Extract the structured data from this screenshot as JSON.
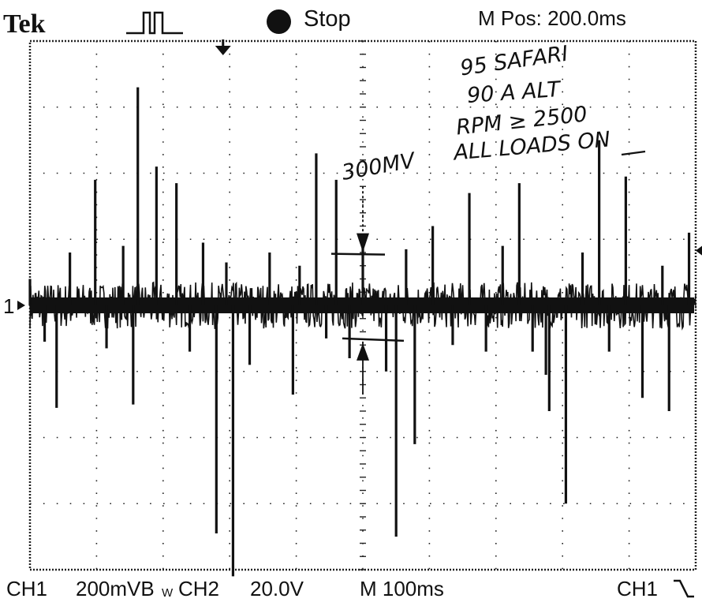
{
  "header": {
    "brand": "Tek",
    "trigger_icon": "pulse-waveform-icon",
    "run_status": "Stop",
    "m_pos": "M Pos: 200.0ms"
  },
  "footer": {
    "ch1_label": "CH1",
    "ch1_scale": "200mVB",
    "bw_mark": "W",
    "ch2_label": "CH2",
    "ch2_scale": "20.0V",
    "timebase": "M 100ms",
    "trigger_source": "CH1",
    "trigger_slope_icon": "falling-edge-icon"
  },
  "annotations": {
    "lines": [
      "95 SAFARI",
      "90 A ALT",
      "RPM ≥ 2500",
      "ALL LOADS ON"
    ],
    "measurement": "300MV"
  },
  "colors": {
    "trace": "#111111",
    "background": "#ffffff",
    "grid": "#222222"
  },
  "chart_data": {
    "type": "line",
    "title": "",
    "xlabel": "",
    "ylabel": "",
    "channel_marker": "1",
    "x_divisions": 10,
    "y_divisions": 8,
    "x_unit_per_div": "100ms",
    "y_unit_per_div": "200mV",
    "xlim": [
      0,
      10
    ],
    "ylim": [
      -4,
      4
    ],
    "noise_band_div": 0.35,
    "spikes": [
      {
        "x": 0.0,
        "y": 0.4
      },
      {
        "x": 0.22,
        "y": -0.55
      },
      {
        "x": 0.4,
        "y": -1.55
      },
      {
        "x": 0.6,
        "y": 0.8
      },
      {
        "x": 0.98,
        "y": 1.9
      },
      {
        "x": 1.15,
        "y": -0.65
      },
      {
        "x": 1.4,
        "y": 0.9
      },
      {
        "x": 1.55,
        "y": -1.5
      },
      {
        "x": 1.62,
        "y": 3.3
      },
      {
        "x": 1.9,
        "y": 2.1
      },
      {
        "x": 2.2,
        "y": 1.85
      },
      {
        "x": 2.4,
        "y": -0.7
      },
      {
        "x": 2.6,
        "y": 0.95
      },
      {
        "x": 2.8,
        "y": -3.45
      },
      {
        "x": 2.95,
        "y": 0.65
      },
      {
        "x": 3.05,
        "y": -4.1
      },
      {
        "x": 3.3,
        "y": -0.9
      },
      {
        "x": 3.6,
        "y": 0.8
      },
      {
        "x": 3.95,
        "y": -1.35
      },
      {
        "x": 4.05,
        "y": 0.6
      },
      {
        "x": 4.3,
        "y": 2.3
      },
      {
        "x": 4.45,
        "y": -0.5
      },
      {
        "x": 4.6,
        "y": 1.9
      },
      {
        "x": 4.8,
        "y": -0.8
      },
      {
        "x": 5.0,
        "y": 0.95
      },
      {
        "x": 5.35,
        "y": -1.0
      },
      {
        "x": 5.5,
        "y": -3.5
      },
      {
        "x": 5.65,
        "y": 0.85
      },
      {
        "x": 5.78,
        "y": -2.1
      },
      {
        "x": 6.05,
        "y": 1.2
      },
      {
        "x": 6.35,
        "y": -0.6
      },
      {
        "x": 6.6,
        "y": 1.7
      },
      {
        "x": 6.85,
        "y": -0.7
      },
      {
        "x": 7.1,
        "y": 0.9
      },
      {
        "x": 7.35,
        "y": 1.85
      },
      {
        "x": 7.55,
        "y": -0.7
      },
      {
        "x": 7.75,
        "y": -1.05
      },
      {
        "x": 7.8,
        "y": -1.6
      },
      {
        "x": 8.05,
        "y": -3.0
      },
      {
        "x": 8.3,
        "y": 0.8
      },
      {
        "x": 8.55,
        "y": 2.5
      },
      {
        "x": 8.7,
        "y": -0.7
      },
      {
        "x": 8.95,
        "y": 1.95
      },
      {
        "x": 9.2,
        "y": -1.4
      },
      {
        "x": 9.5,
        "y": 0.6
      },
      {
        "x": 9.6,
        "y": -1.6
      },
      {
        "x": 9.9,
        "y": 1.1
      }
    ]
  }
}
